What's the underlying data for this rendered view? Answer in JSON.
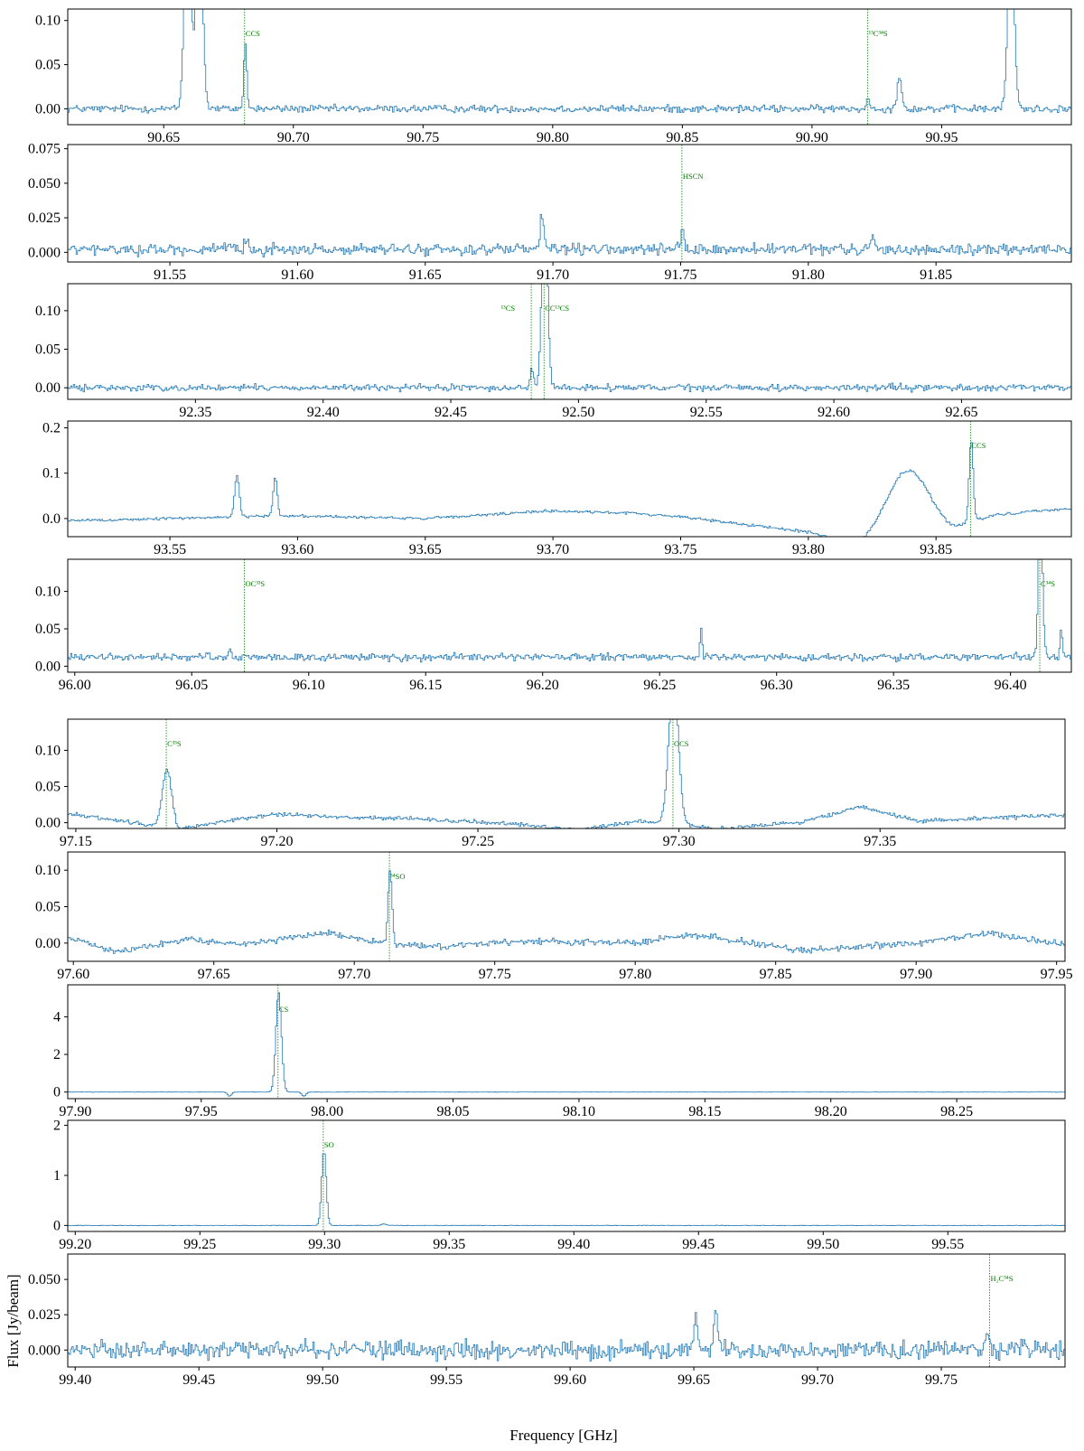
{
  "figure": {
    "xlabel": "Frequency [GHz]",
    "ylabel": "Flux [Jy/beam]",
    "spectrum_color": "#1f77b4",
    "line_marker_color": "#008000"
  },
  "chart_data": [
    {
      "type": "line",
      "xlim": [
        90.613,
        91.0
      ],
      "ylim": [
        -0.018,
        0.113
      ],
      "xticks": [
        90.65,
        90.7,
        90.75,
        90.8,
        90.85,
        90.9,
        90.95
      ],
      "xtick_labels": [
        "90.65",
        "90.70",
        "90.75",
        "90.80",
        "90.85",
        "90.90",
        "90.95"
      ],
      "yticks": [
        0,
        0.05,
        0.1
      ],
      "ytick_labels": [
        "0.00",
        "0.05",
        "0.10"
      ],
      "noise": 0.003,
      "baseline": 0.0,
      "peaks": [
        [
          90.659,
          0.25,
          0.0012
        ],
        [
          90.6635,
          0.25,
          0.0012
        ],
        [
          90.6812,
          0.072,
          0.0006
        ],
        [
          90.9215,
          0.015,
          0.0005
        ],
        [
          90.9335,
          0.035,
          0.0009
        ],
        [
          90.9765,
          0.2,
          0.0012
        ]
      ],
      "lines": [
        {
          "x": 90.6812,
          "label": "CCS"
        },
        {
          "x": 90.9215,
          "label": "¹³C³⁴S"
        }
      ]
    },
    {
      "type": "line",
      "xlim": [
        91.51,
        91.903
      ],
      "ylim": [
        -0.007,
        0.078
      ],
      "xticks": [
        91.55,
        91.6,
        91.65,
        91.7,
        91.75,
        91.8,
        91.85
      ],
      "xtick_labels": [
        "91.55",
        "91.60",
        "91.65",
        "91.70",
        "91.75",
        "91.80",
        "91.85"
      ],
      "yticks": [
        0,
        0.025,
        0.05,
        0.075
      ],
      "ytick_labels": [
        "0.000",
        "0.025",
        "0.050",
        "0.075"
      ],
      "noise": 0.0028,
      "baseline": 0.002,
      "peaks": [
        [
          91.6955,
          0.026,
          0.0007
        ],
        [
          91.7505,
          0.014,
          0.0006
        ],
        [
          91.825,
          0.011,
          0.0006
        ],
        [
          91.58,
          0.008,
          0.0008
        ]
      ],
      "lines": [
        {
          "x": 91.7505,
          "label": "HSCN"
        }
      ]
    },
    {
      "type": "line",
      "xlim": [
        92.3,
        92.693
      ],
      "ylim": [
        -0.015,
        0.135
      ],
      "xticks": [
        92.35,
        92.4,
        92.45,
        92.5,
        92.55,
        92.6,
        92.65
      ],
      "xtick_labels": [
        "92.35",
        "92.40",
        "92.45",
        "92.50",
        "92.55",
        "92.60",
        "92.65"
      ],
      "yticks": [
        0,
        0.05,
        0.1
      ],
      "ytick_labels": [
        "0.00",
        "0.05",
        "0.10"
      ],
      "noise": 0.003,
      "baseline": 0.0,
      "peaks": [
        [
          92.4815,
          0.025,
          0.0006
        ],
        [
          92.4865,
          0.25,
          0.0011
        ]
      ],
      "lines": [
        {
          "x": 92.4815,
          "label": "¹³CS"
        },
        {
          "x": 92.4865,
          "label": "CC¹³CS"
        }
      ]
    },
    {
      "type": "line",
      "xlim": [
        93.51,
        93.903
      ],
      "ylim": [
        -0.04,
        0.215
      ],
      "xticks": [
        93.55,
        93.6,
        93.65,
        93.7,
        93.75,
        93.8,
        93.85
      ],
      "xtick_labels": [
        "93.55",
        "93.60",
        "93.65",
        "93.70",
        "93.75",
        "93.80",
        "93.85"
      ],
      "yticks": [
        0,
        0.1,
        0.2
      ],
      "ytick_labels": [
        "0.0",
        "0.1",
        "0.2"
      ],
      "noise": 0.0022,
      "baseline": 0.0,
      "baseline_points": [
        [
          93.51,
          -0.005
        ],
        [
          93.55,
          0.0
        ],
        [
          93.575,
          0.004
        ],
        [
          93.6,
          0.006
        ],
        [
          93.65,
          0.0
        ],
        [
          93.7,
          0.017
        ],
        [
          93.73,
          0.012
        ],
        [
          93.75,
          0.004
        ],
        [
          93.8,
          -0.03
        ],
        [
          93.82,
          -0.06
        ],
        [
          93.835,
          -0.035
        ],
        [
          93.855,
          -0.035
        ],
        [
          93.865,
          -0.005
        ],
        [
          93.875,
          0.01
        ],
        [
          93.903,
          0.022
        ]
      ],
      "peaks": [
        [
          93.576,
          0.09,
          0.0009
        ],
        [
          93.591,
          0.085,
          0.0008
        ],
        [
          93.839,
          0.14,
          0.0085
        ],
        [
          93.8635,
          0.18,
          0.0008
        ]
      ],
      "lines": [
        {
          "x": 93.8635,
          "label": "CCS"
        }
      ]
    },
    {
      "type": "line",
      "xlim": [
        95.997,
        96.426
      ],
      "ylim": [
        -0.008,
        0.143
      ],
      "xticks": [
        96.0,
        96.05,
        96.1,
        96.15,
        96.2,
        96.25,
        96.3,
        96.35,
        96.4
      ],
      "xtick_labels": [
        "96.00",
        "96.05",
        "96.10",
        "96.15",
        "96.20",
        "96.25",
        "96.30",
        "96.35",
        "96.40"
      ],
      "yticks": [
        0,
        0.05,
        0.1
      ],
      "ytick_labels": [
        "0.00",
        "0.05",
        "0.10"
      ],
      "noise": 0.0035,
      "baseline": 0.012,
      "peaks": [
        [
          96.066,
          0.01,
          0.0008
        ],
        [
          96.2675,
          0.035,
          0.0005
        ],
        [
          96.4125,
          0.2,
          0.0009
        ],
        [
          96.4215,
          0.038,
          0.0005
        ]
      ],
      "lines": [
        {
          "x": 96.0725,
          "label": "OC³³S"
        },
        {
          "x": 96.4125,
          "label": "C³⁴S"
        }
      ]
    },
    {
      "type": "line",
      "xlim": [
        97.148,
        97.396
      ],
      "ylim": [
        -0.008,
        0.143
      ],
      "xticks": [
        97.15,
        97.2,
        97.25,
        97.3,
        97.35
      ],
      "xtick_labels": [
        "97.15",
        "97.20",
        "97.25",
        "97.30",
        "97.35"
      ],
      "yticks": [
        0,
        0.05,
        0.1
      ],
      "ytick_labels": [
        "0.00",
        "0.05",
        "0.10"
      ],
      "noise": 0.002,
      "baseline": 0.0,
      "baseline_points": [
        [
          97.148,
          0.012
        ],
        [
          97.16,
          0.004
        ],
        [
          97.175,
          -0.01
        ],
        [
          97.19,
          0.005
        ],
        [
          97.2,
          0.012
        ],
        [
          97.215,
          0.008
        ],
        [
          97.235,
          0.005
        ],
        [
          97.26,
          -0.002
        ],
        [
          97.275,
          -0.01
        ],
        [
          97.29,
          0.003
        ],
        [
          97.31,
          -0.008
        ],
        [
          97.33,
          0.0
        ],
        [
          97.345,
          0.022
        ],
        [
          97.36,
          0.002
        ],
        [
          97.375,
          0.006
        ],
        [
          97.396,
          0.01
        ]
      ],
      "peaks": [
        [
          97.1725,
          0.08,
          0.0012
        ],
        [
          97.2985,
          0.2,
          0.0012
        ]
      ],
      "lines": [
        {
          "x": 97.1725,
          "label": "C³³S"
        },
        {
          "x": 97.2985,
          "label": "OCS"
        }
      ]
    },
    {
      "type": "line",
      "xlim": [
        97.598,
        97.953
      ],
      "ylim": [
        -0.025,
        0.125
      ],
      "xticks": [
        97.6,
        97.65,
        97.7,
        97.75,
        97.8,
        97.85,
        97.9,
        97.95
      ],
      "xtick_labels": [
        "97.60",
        "97.65",
        "97.70",
        "97.75",
        "97.80",
        "97.85",
        "97.90",
        "97.95"
      ],
      "yticks": [
        0,
        0.05,
        0.1
      ],
      "ytick_labels": [
        "0.00",
        "0.05",
        "0.10"
      ],
      "noise": 0.003,
      "baseline": 0.0,
      "baseline_points": [
        [
          97.598,
          0.008
        ],
        [
          97.615,
          -0.012
        ],
        [
          97.64,
          0.005
        ],
        [
          97.66,
          -0.003
        ],
        [
          97.69,
          0.015
        ],
        [
          97.71,
          0.0
        ],
        [
          97.73,
          -0.005
        ],
        [
          97.76,
          0.003
        ],
        [
          97.8,
          0.0
        ],
        [
          97.82,
          0.012
        ],
        [
          97.86,
          -0.01
        ],
        [
          97.9,
          0.0
        ],
        [
          97.925,
          0.013
        ],
        [
          97.953,
          -0.002
        ]
      ],
      "peaks": [
        [
          97.7125,
          0.1,
          0.0007
        ]
      ],
      "lines": [
        {
          "x": 97.7125,
          "label": "³⁴SO"
        }
      ]
    },
    {
      "type": "line",
      "xlim": [
        97.897,
        98.293
      ],
      "ylim": [
        -0.35,
        5.7
      ],
      "xticks": [
        97.9,
        97.95,
        98.0,
        98.05,
        98.1,
        98.15,
        98.2,
        98.25
      ],
      "xtick_labels": [
        "97.90",
        "97.95",
        "98.00",
        "98.05",
        "98.10",
        "98.15",
        "98.20",
        "98.25"
      ],
      "yticks": [
        0,
        2,
        4
      ],
      "ytick_labels": [
        "0",
        "2",
        "4"
      ],
      "noise": 0.006,
      "baseline": 0.0,
      "peaks": [
        [
          97.9805,
          5.3,
          0.0011
        ],
        [
          97.961,
          -0.22,
          0.0008
        ],
        [
          97.9905,
          -0.22,
          0.0008
        ]
      ],
      "lines": [
        {
          "x": 97.9805,
          "label": "CS"
        }
      ]
    },
    {
      "type": "line",
      "xlim": [
        99.197,
        99.597
      ],
      "ylim": [
        -0.12,
        2.1
      ],
      "xticks": [
        99.2,
        99.25,
        99.3,
        99.35,
        99.4,
        99.45,
        99.5,
        99.55
      ],
      "xtick_labels": [
        "99.20",
        "99.25",
        "99.30",
        "99.35",
        "99.40",
        "99.45",
        "99.50",
        "99.55"
      ],
      "yticks": [
        0,
        1,
        2
      ],
      "ytick_labels": [
        "0",
        "1",
        "2"
      ],
      "noise": 0.003,
      "baseline": 0.0,
      "peaks": [
        [
          99.2995,
          1.5,
          0.0009
        ],
        [
          99.3235,
          0.03,
          0.001
        ]
      ],
      "lines": [
        {
          "x": 99.2995,
          "label": "SO"
        }
      ]
    },
    {
      "type": "line",
      "xlim": [
        99.397,
        99.8
      ],
      "ylim": [
        -0.012,
        0.068
      ],
      "xticks": [
        99.4,
        99.45,
        99.5,
        99.55,
        99.6,
        99.65,
        99.7,
        99.75
      ],
      "xtick_labels": [
        "99.40",
        "99.45",
        "99.50",
        "99.55",
        "99.60",
        "99.65",
        "99.70",
        "99.75"
      ],
      "yticks": [
        0,
        0.025,
        0.05
      ],
      "ytick_labels": [
        "0.000",
        "0.025",
        "0.050"
      ],
      "noise": 0.0045,
      "baseline": 0.0,
      "peaks": [
        [
          99.6505,
          0.028,
          0.0007
        ],
        [
          99.6585,
          0.034,
          0.0007
        ],
        [
          99.7685,
          0.012,
          0.0006
        ]
      ],
      "lines": [
        {
          "x": 99.7695,
          "label": "H₂C³⁴S"
        }
      ]
    }
  ]
}
